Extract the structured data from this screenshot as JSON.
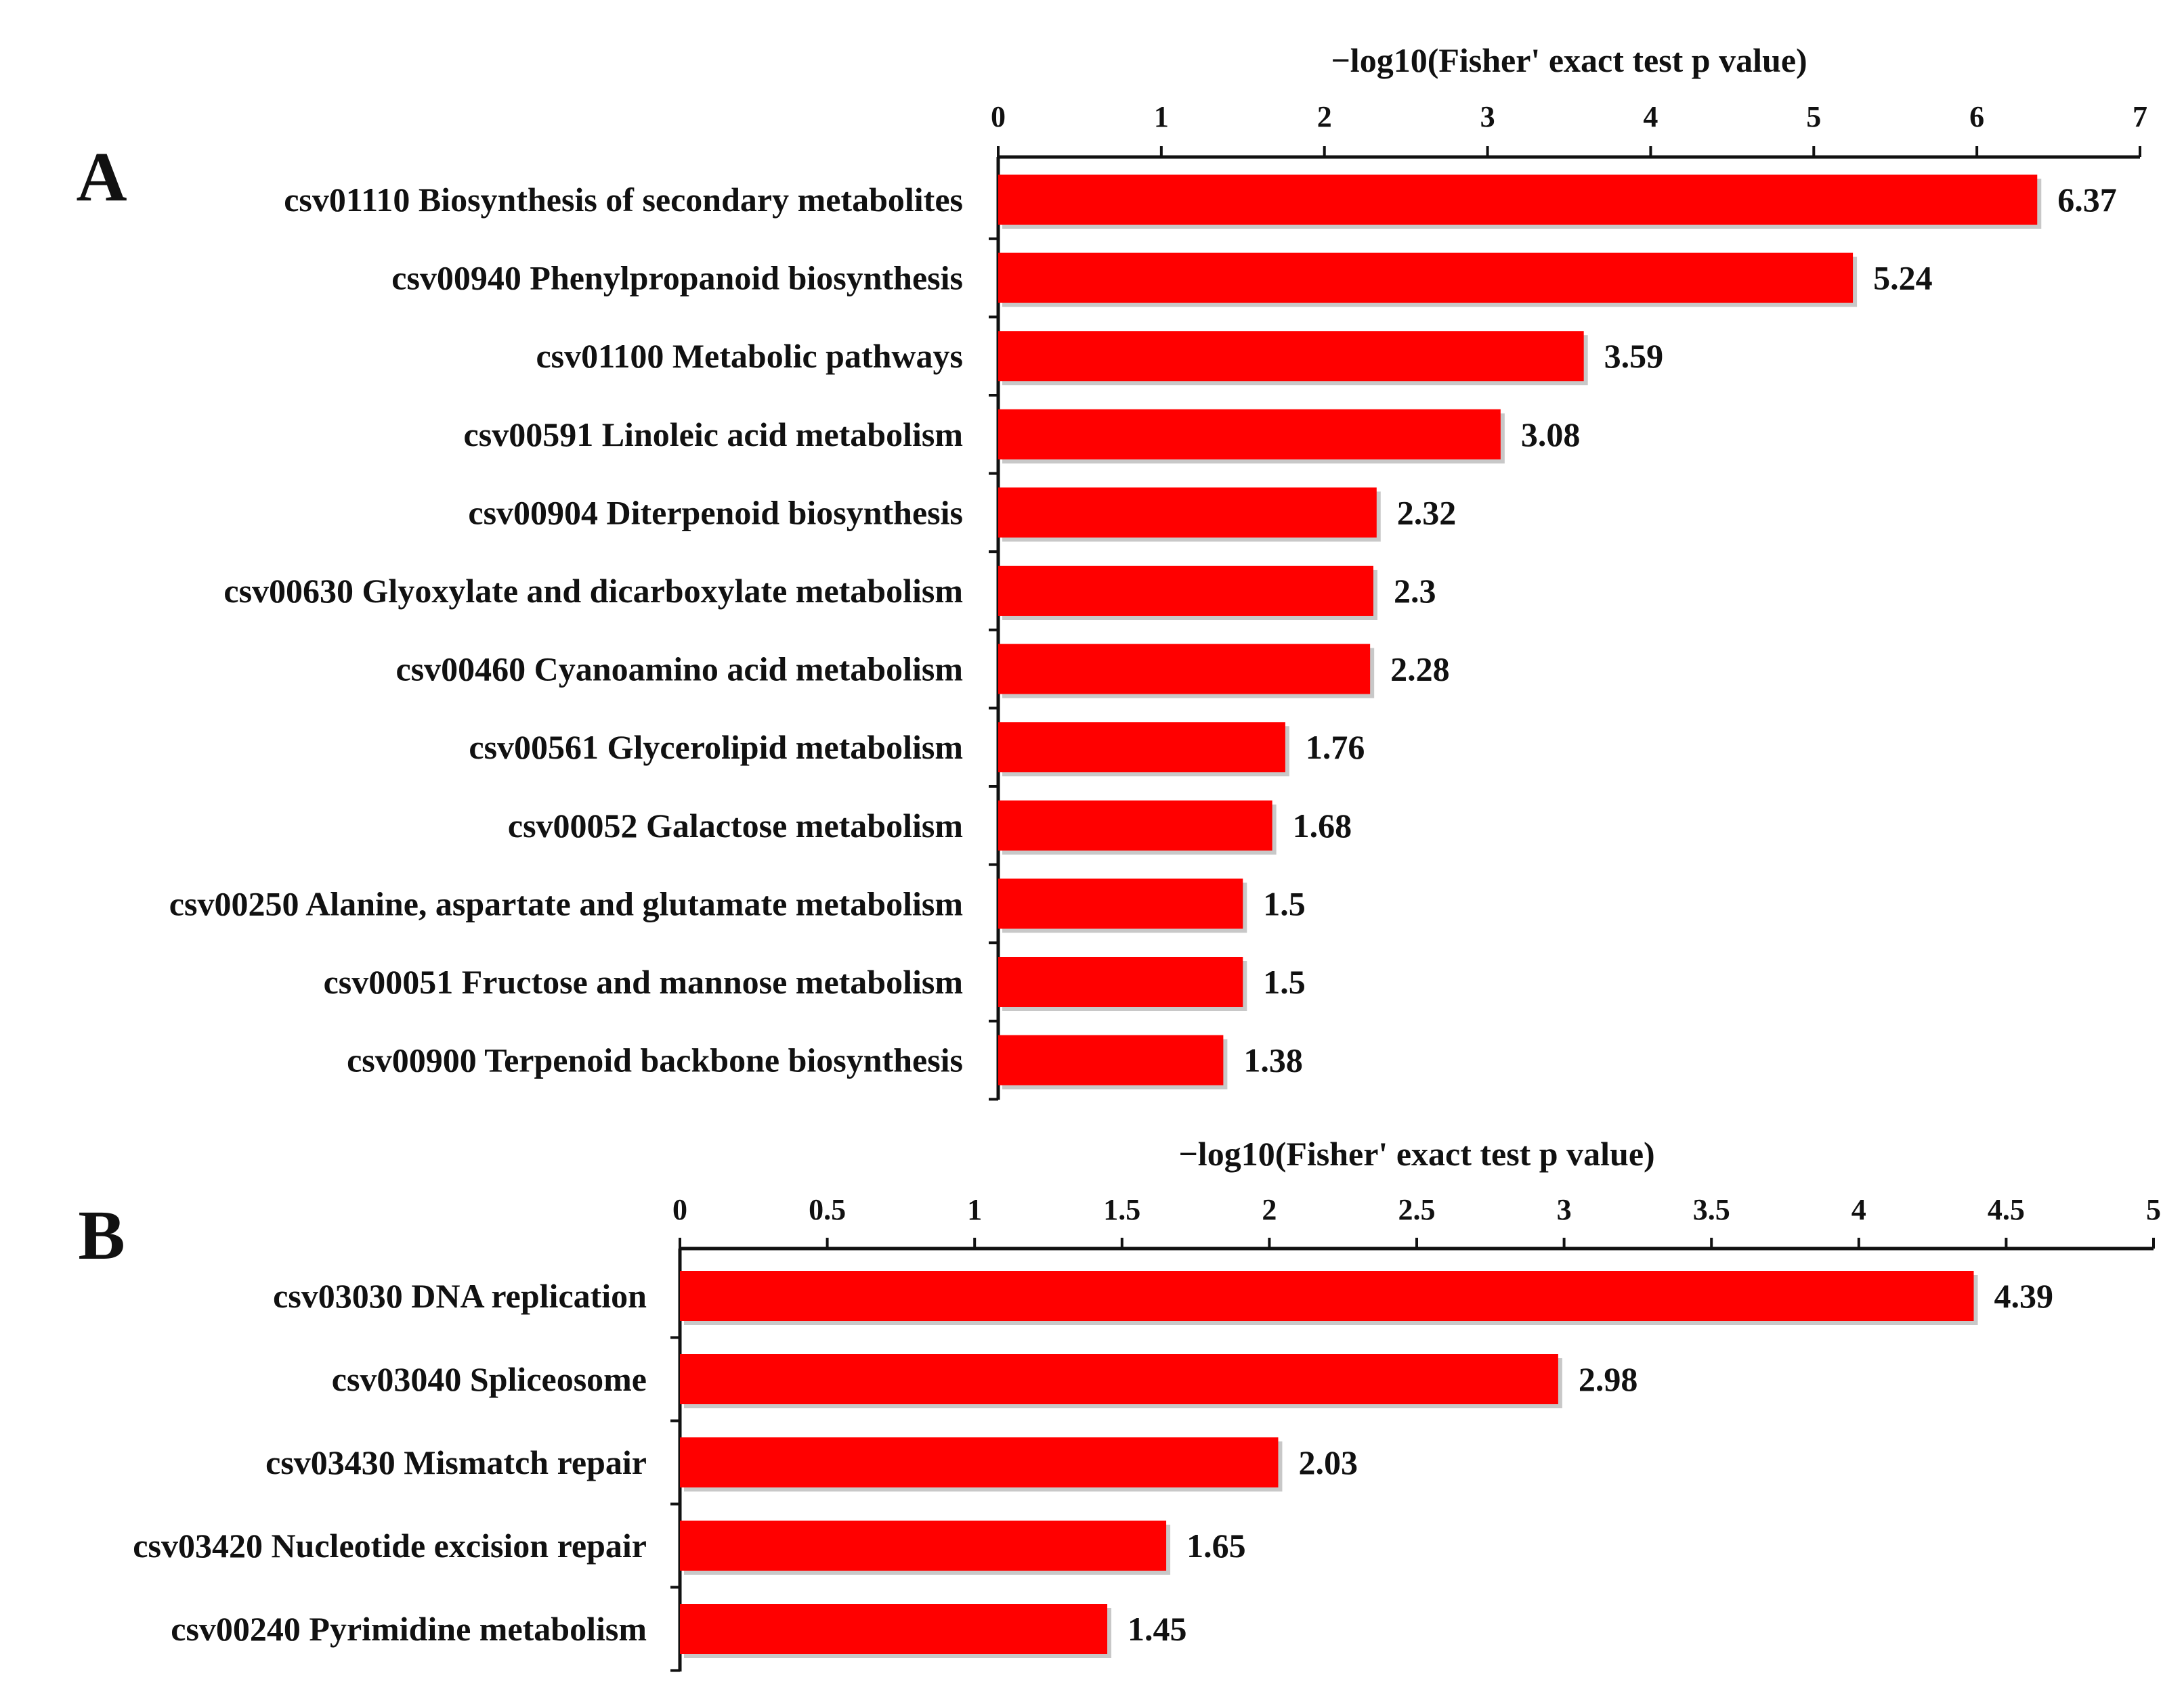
{
  "chart_data": [
    {
      "type": "bar",
      "orientation": "horizontal",
      "panel_label": "A",
      "title": "",
      "xlabel": "−log10(Fisher' exact test p value)",
      "ylabel": "",
      "xlim": [
        0,
        7
      ],
      "xticks": [
        0,
        1,
        2,
        3,
        4,
        5,
        6,
        7
      ],
      "xtick_labels": [
        "0",
        "1",
        "2",
        "3",
        "4",
        "5",
        "6",
        "7"
      ],
      "grid": false,
      "legend": "none",
      "bar_color": "#ff0000",
      "categories": [
        "csv01110 Biosynthesis of secondary metabolites",
        "csv00940 Phenylpropanoid biosynthesis",
        "csv01100 Metabolic pathways",
        "csv00591 Linoleic acid metabolism",
        "csv00904 Diterpenoid biosynthesis",
        "csv00630 Glyoxylate and dicarboxylate metabolism",
        "csv00460 Cyanoamino acid metabolism",
        "csv00561 Glycerolipid metabolism",
        "csv00052 Galactose metabolism",
        "csv00250 Alanine, aspartate and glutamate metabolism",
        "csv00051 Fructose and mannose metabolism",
        "csv00900 Terpenoid backbone biosynthesis"
      ],
      "values": [
        6.37,
        5.24,
        3.59,
        3.08,
        2.32,
        2.3,
        2.28,
        1.76,
        1.68,
        1.5,
        1.5,
        1.38
      ],
      "value_labels": [
        "6.37",
        "5.24",
        "3.59",
        "3.08",
        "2.32",
        "2.3",
        "2.28",
        "1.76",
        "1.68",
        "1.5",
        "1.5",
        "1.38"
      ]
    },
    {
      "type": "bar",
      "orientation": "horizontal",
      "panel_label": "B",
      "title": "",
      "xlabel": "−log10(Fisher' exact test p value)",
      "ylabel": "",
      "xlim": [
        0,
        5
      ],
      "xticks": [
        0,
        0.5,
        1,
        1.5,
        2,
        2.5,
        3,
        3.5,
        4,
        4.5,
        5
      ],
      "xtick_labels": [
        "0",
        "0.5",
        "1",
        "1.5",
        "2",
        "2.5",
        "3",
        "3.5",
        "4",
        "4.5",
        "5"
      ],
      "grid": false,
      "legend": "none",
      "bar_color": "#ff0000",
      "categories": [
        "csv03030 DNA replication",
        "csv03040 Spliceosome",
        "csv03430 Mismatch repair",
        "csv03420 Nucleotide excision repair",
        "csv00240 Pyrimidine metabolism"
      ],
      "values": [
        4.39,
        2.98,
        2.03,
        1.65,
        1.45
      ],
      "value_labels": [
        "4.39",
        "2.98",
        "2.03",
        "1.65",
        "1.45"
      ]
    }
  ]
}
